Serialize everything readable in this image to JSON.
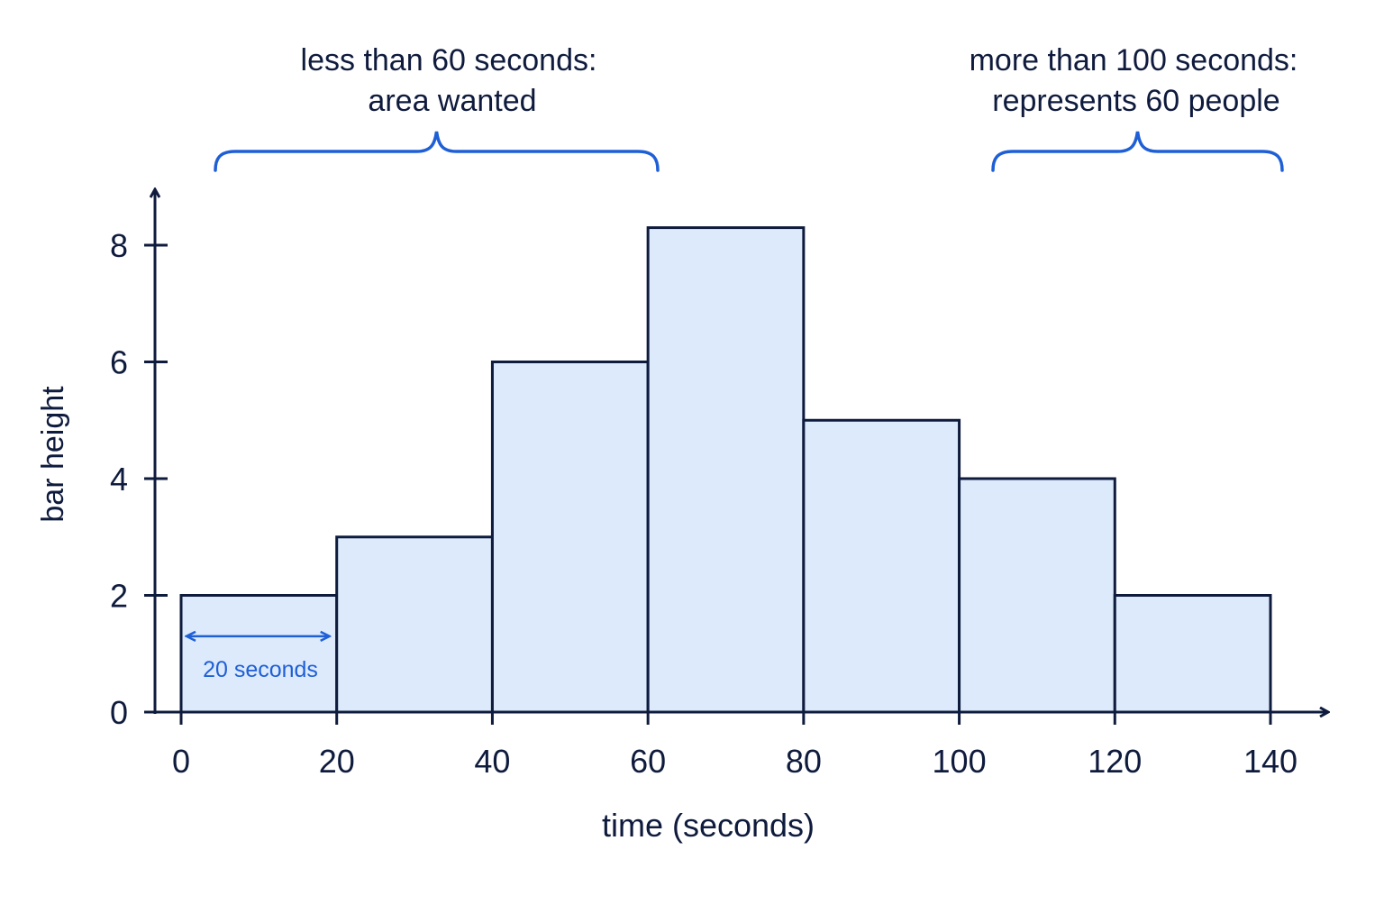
{
  "chart_data": {
    "type": "bar",
    "bins": [
      {
        "start": 0,
        "end": 20,
        "height": 2
      },
      {
        "start": 20,
        "end": 40,
        "height": 3
      },
      {
        "start": 40,
        "end": 60,
        "height": 6
      },
      {
        "start": 60,
        "end": 80,
        "height": 8.3
      },
      {
        "start": 80,
        "end": 100,
        "height": 5
      },
      {
        "start": 100,
        "end": 120,
        "height": 4
      },
      {
        "start": 120,
        "end": 140,
        "height": 2
      }
    ],
    "x_ticks": [
      "0",
      "20",
      "40",
      "60",
      "80",
      "100",
      "120",
      "140"
    ],
    "y_ticks": [
      "0",
      "2",
      "4",
      "6",
      "8"
    ],
    "xlabel": "time (seconds)",
    "ylabel": "bar height",
    "xlim": [
      0,
      140
    ],
    "ylim": [
      0,
      8.3
    ],
    "grid": false,
    "annotations": {
      "left_brace": {
        "line1": "less than 60 seconds:",
        "line2": "area wanted",
        "from": 0,
        "to": 60
      },
      "right_brace": {
        "line1": "more than 100 seconds:",
        "line2": "represents 60 people",
        "from": 100,
        "to": 140
      },
      "width_marker": {
        "label": "20 seconds",
        "from": 0,
        "to": 20,
        "y": 1.3
      }
    }
  },
  "colors": {
    "bar_fill": "#dceafb",
    "outline": "#0f1b3d",
    "accent": "#1f5fd6"
  }
}
